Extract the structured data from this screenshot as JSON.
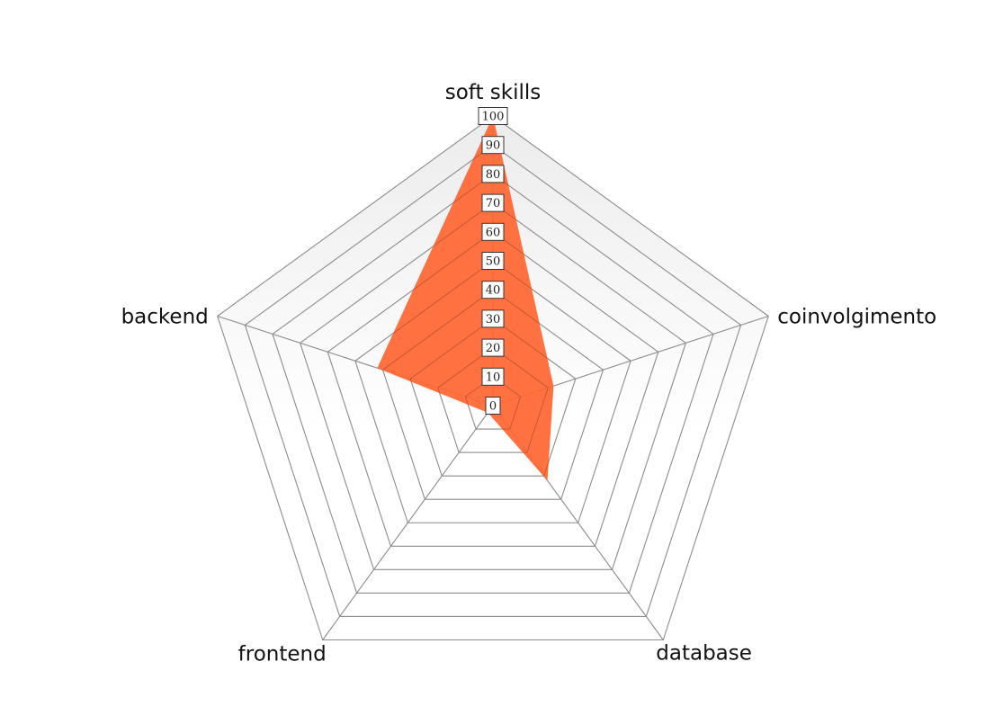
{
  "chart_data": {
    "type": "radar",
    "axes": [
      "soft skills",
      "coinvolgimento",
      "database",
      "frontend",
      "backend"
    ],
    "series": [
      {
        "values": [
          100,
          22,
          32,
          3,
          42
        ],
        "color": "#ff6633"
      }
    ],
    "r_range": [
      0,
      100
    ],
    "tick_values": [
      0,
      10,
      20,
      30,
      40,
      50,
      60,
      70,
      80,
      90,
      100
    ],
    "tick_labels": [
      "0",
      "10",
      "20",
      "30",
      "40",
      "50",
      "60",
      "70",
      "80",
      "90",
      "100"
    ],
    "grid": true,
    "legend": "none",
    "colors": {
      "background_top": "#ececec",
      "background_bottom": "#ffffff",
      "grid_line": "#8c8c8c",
      "series_fill": "#ff6633"
    }
  }
}
